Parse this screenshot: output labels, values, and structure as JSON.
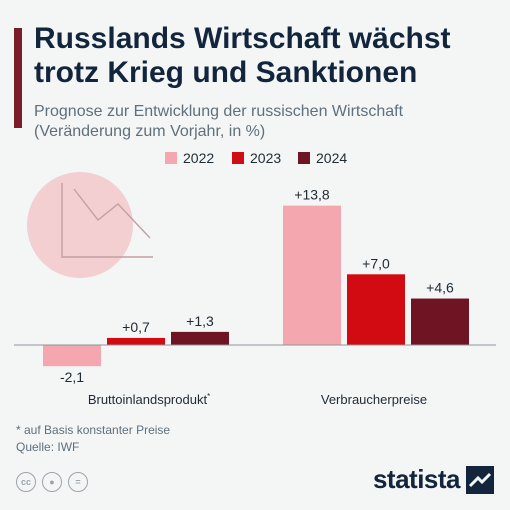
{
  "title": "Russlands Wirtschaft wächst trotz Krieg und Sanktionen",
  "subtitle_line1": "Prognose zur Entwicklung der russischen Wirtschaft",
  "subtitle_line2": "(Veränderung zum Vorjahr, in %)",
  "colors": {
    "2022": "#f4a7ae",
    "2023": "#d20a11",
    "2024": "#6e1423",
    "accent": "#7b1c2a",
    "text": "#12253c"
  },
  "chart_data": {
    "type": "bar",
    "categories": [
      "Bruttoinlandsprodukt",
      "Verbraucherpreise"
    ],
    "category_markers": [
      "*",
      ""
    ],
    "series": [
      {
        "name": "2022",
        "values": [
          -2.1,
          13.8
        ],
        "labels": [
          "-2,1",
          "+13,8"
        ]
      },
      {
        "name": "2023",
        "values": [
          0.7,
          7.0
        ],
        "labels": [
          "+0,7",
          "+7,0"
        ]
      },
      {
        "name": "2024",
        "values": [
          1.3,
          4.6
        ],
        "labels": [
          "+1,3",
          "+4,6"
        ]
      }
    ],
    "ylim": [
      -2.1,
      13.8
    ],
    "legend_position": "top",
    "grid": false
  },
  "footnote": "* auf Basis konstanter Preise",
  "source": "Quelle: IWF",
  "licenses": [
    "cc-icon",
    "by-icon",
    "nd-icon"
  ],
  "brand": "statista",
  "decoration_icon": "declining-chart-icon"
}
